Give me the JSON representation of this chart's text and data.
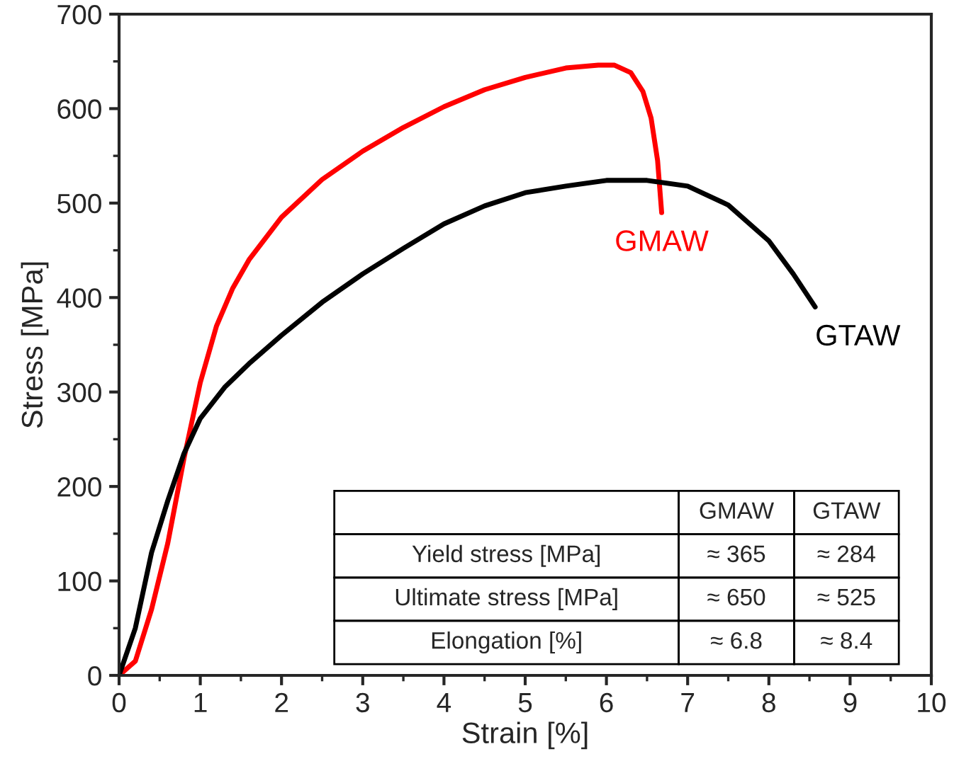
{
  "chart_data": {
    "type": "line",
    "xlabel": "Strain [%]",
    "ylabel": "Stress [MPa]",
    "xlim": [
      0,
      10
    ],
    "xticks": [
      0,
      1,
      2,
      3,
      4,
      5,
      6,
      7,
      8,
      9,
      10
    ],
    "ylim": [
      0,
      700
    ],
    "yticks": [
      0,
      100,
      200,
      300,
      400,
      500,
      600,
      700
    ],
    "grid": false,
    "legend": false,
    "series": [
      {
        "name": "GMAW",
        "color": "#ff0000",
        "x": [
          0,
          0.2,
          0.4,
          0.6,
          0.8,
          1.0,
          1.2,
          1.4,
          1.6,
          2,
          2.5,
          3,
          3.5,
          4,
          4.5,
          5,
          5.5,
          5.9,
          6.1,
          6.3,
          6.45,
          6.55,
          6.63,
          6.68
        ],
        "values": [
          0,
          15,
          70,
          140,
          230,
          310,
          370,
          410,
          440,
          485,
          525,
          555,
          580,
          602,
          620,
          633,
          643,
          646,
          646,
          638,
          618,
          590,
          545,
          490
        ]
      },
      {
        "name": "GTAW",
        "color": "#000000",
        "x": [
          0,
          0.2,
          0.4,
          0.6,
          0.8,
          1.0,
          1.3,
          1.6,
          2,
          2.5,
          3,
          3.5,
          4,
          4.5,
          5,
          5.5,
          6,
          6.5,
          7,
          7.5,
          8,
          8.3,
          8.57
        ],
        "values": [
          0,
          50,
          130,
          185,
          235,
          272,
          305,
          330,
          360,
          395,
          425,
          452,
          478,
          497,
          511,
          518,
          524,
          524,
          518,
          498,
          460,
          425,
          390
        ]
      }
    ],
    "annotations": [
      "GMAW",
      "GTAW",
      "Yield stress [MPa]",
      "≈ 365",
      "≈ 284",
      "Ultimate stress [MPa]",
      "≈ 650",
      "≈ 525",
      "Elongation [%]",
      "≈ 6.8",
      "≈ 8.4"
    ]
  }
}
